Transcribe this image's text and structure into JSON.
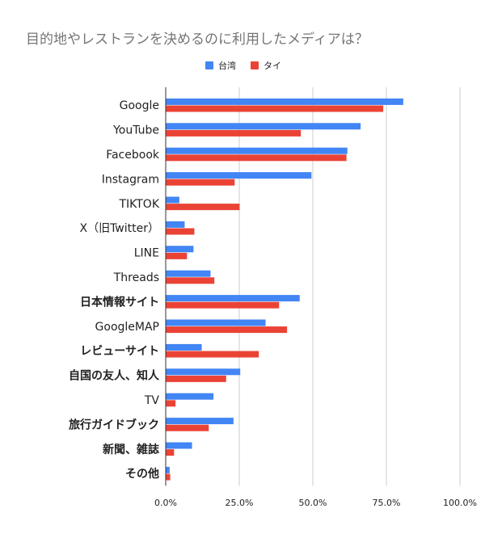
{
  "chart_data": {
    "type": "bar",
    "orientation": "horizontal",
    "title": "目的地やレストランを決めるのに利用したメディアは？",
    "categories": [
      "Google",
      "YouTube",
      "Facebook",
      "Instagram",
      "TIKTOK",
      "X（旧Twitter）",
      "LINE",
      "Threads",
      "日本情報サイト",
      "GoogleMAP",
      "レビューサイト",
      "自国の友人、知人",
      "TV",
      "旅行ガイドブック",
      "新聞、雑誌",
      "その他"
    ],
    "bold_categories": [
      "日本情報サイト",
      "レビューサイト",
      "自国の友人、知人",
      "旅行ガイドブック",
      "新聞、雑誌",
      "その他"
    ],
    "series": [
      {
        "name": "台湾",
        "color": "#4285f4",
        "values": [
          80.6,
          66.1,
          61.6,
          49.4,
          4.5,
          6.3,
          9.3,
          15.1,
          45.4,
          33.8,
          12.1,
          25.2,
          16.1,
          22.9,
          8.8,
          1.2
        ]
      },
      {
        "name": "タイ",
        "color": "#ea4335",
        "values": [
          73.8,
          45.8,
          61.3,
          23.3,
          25.0,
          9.6,
          7.1,
          16.4,
          38.4,
          41.1,
          31.5,
          20.4,
          3.2,
          14.5,
          2.7,
          1.4
        ]
      }
    ],
    "xlim": [
      0,
      100
    ],
    "xticks": [
      "0.0%",
      "25.0%",
      "50.0%",
      "75.0%",
      "100.0%"
    ],
    "grid": true,
    "legend_position": "top-center"
  }
}
